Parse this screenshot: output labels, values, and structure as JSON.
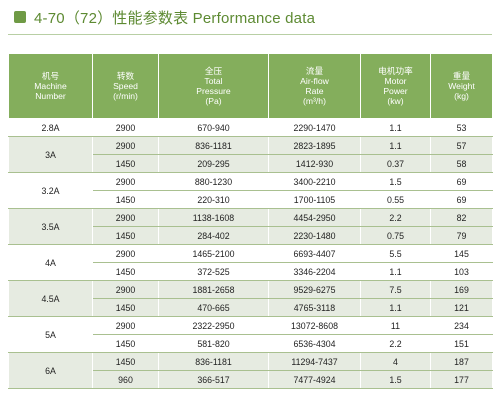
{
  "title": "4-70（72）性能参数表 Performance data",
  "headers": [
    {
      "cn": "机号",
      "en1": "Machine",
      "en2": "Number"
    },
    {
      "cn": "转数",
      "en1": "Speed",
      "en2": "(r/min)"
    },
    {
      "cn": "全压",
      "en1": "Total",
      "en2": "Pressure",
      "en3": "(Pa)"
    },
    {
      "cn": "流量",
      "en1": "Air-flow",
      "en2": "Rate",
      "en3": "(m³/h)"
    },
    {
      "cn": "电机功率",
      "en1": "Motor",
      "en2": "Power",
      "en3": "(kw)"
    },
    {
      "cn": "重量",
      "en1": "Weight",
      "en2": "(kg)"
    }
  ],
  "groups": [
    {
      "machine": "2.8A",
      "rows": [
        [
          "2900",
          "670-940",
          "2290-1470",
          "1.1",
          "53"
        ]
      ]
    },
    {
      "machine": "3A",
      "rows": [
        [
          "2900",
          "836-1181",
          "2823-1895",
          "1.1",
          "57"
        ],
        [
          "1450",
          "209-295",
          "1412-930",
          "0.37",
          "58"
        ]
      ]
    },
    {
      "machine": "3.2A",
      "rows": [
        [
          "2900",
          "880-1230",
          "3400-2210",
          "1.5",
          "69"
        ],
        [
          "1450",
          "220-310",
          "1700-1105",
          "0.55",
          "69"
        ]
      ]
    },
    {
      "machine": "3.5A",
      "rows": [
        [
          "2900",
          "1138-1608",
          "4454-2950",
          "2.2",
          "82"
        ],
        [
          "1450",
          "284-402",
          "2230-1480",
          "0.75",
          "79"
        ]
      ]
    },
    {
      "machine": "4A",
      "rows": [
        [
          "2900",
          "1465-2100",
          "6693-4407",
          "5.5",
          "145"
        ],
        [
          "1450",
          "372-525",
          "3346-2204",
          "1.1",
          "103"
        ]
      ]
    },
    {
      "machine": "4.5A",
      "rows": [
        [
          "2900",
          "1881-2658",
          "9529-6275",
          "7.5",
          "169"
        ],
        [
          "1450",
          "470-665",
          "4765-3118",
          "1.1",
          "121"
        ]
      ]
    },
    {
      "machine": "5A",
      "rows": [
        [
          "2900",
          "2322-2950",
          "13072-8608",
          "11",
          "234"
        ],
        [
          "1450",
          "581-820",
          "6536-4304",
          "2.2",
          "151"
        ]
      ]
    },
    {
      "machine": "6A",
      "rows": [
        [
          "1450",
          "836-1181",
          "11294-7437",
          "4",
          "187"
        ],
        [
          "960",
          "366-517",
          "7477-4924",
          "1.5",
          "177"
        ]
      ]
    }
  ]
}
